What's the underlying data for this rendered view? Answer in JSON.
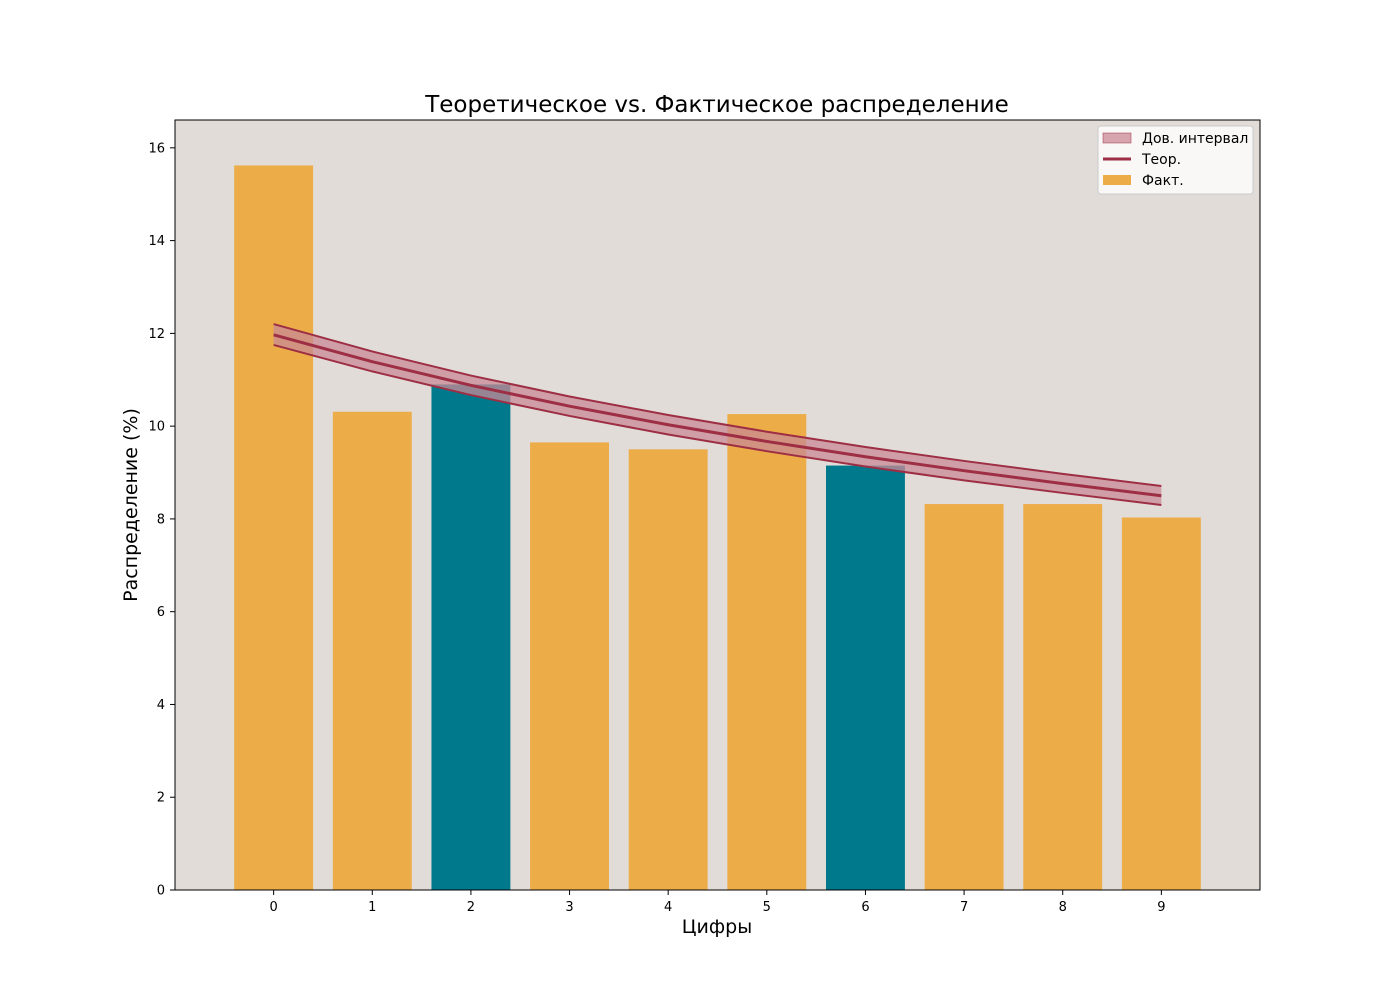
{
  "chart_data": {
    "type": "bar",
    "title": "Теоретическое vs. Фактическое распределение",
    "xlabel": "Цифры",
    "ylabel": "Распределение (%)",
    "categories": [
      "0",
      "1",
      "2",
      "3",
      "4",
      "5",
      "6",
      "7",
      "8",
      "9"
    ],
    "ylim": [
      0,
      16.6
    ],
    "yticks": [
      0,
      2,
      4,
      6,
      8,
      10,
      12,
      14,
      16
    ],
    "grid": false,
    "legend_position": "top-right",
    "series": [
      {
        "name": "Факт.",
        "kind": "bar",
        "values": [
          15.62,
          10.31,
          10.9,
          9.65,
          9.5,
          10.26,
          9.15,
          8.32,
          8.32,
          8.03
        ],
        "colors": [
          "#ecac48",
          "#ecac48",
          "#00798c",
          "#ecac48",
          "#ecac48",
          "#ecac48",
          "#00798c",
          "#ecac48",
          "#ecac48",
          "#ecac48"
        ]
      },
      {
        "name": "Теор.",
        "kind": "line",
        "values": [
          11.97,
          11.39,
          10.88,
          10.43,
          10.03,
          9.67,
          9.34,
          9.04,
          8.76,
          8.5
        ],
        "color": "#9d2e44"
      },
      {
        "name": "Дов. интервал",
        "kind": "band",
        "lower": [
          11.75,
          11.18,
          10.67,
          10.22,
          9.82,
          9.46,
          9.13,
          8.83,
          8.56,
          8.3
        ],
        "upper": [
          12.2,
          11.61,
          11.09,
          10.64,
          10.24,
          9.88,
          9.55,
          9.25,
          8.97,
          8.71
        ],
        "color": "#9d2e44"
      }
    ],
    "colors": {
      "plot_background": "#e1dcd8",
      "bar_default": "#ecac48",
      "bar_highlight": "#00798c",
      "theory_line": "#9d2e44",
      "band_fill": "#c98a96"
    }
  }
}
